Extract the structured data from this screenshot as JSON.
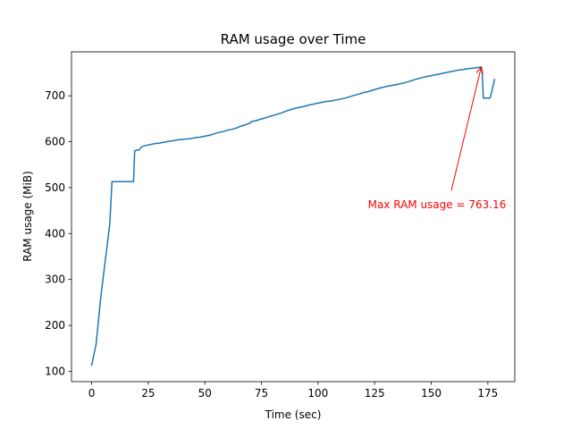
{
  "chart_data": {
    "type": "line",
    "title": "RAM usage over Time",
    "xlabel": "Time (sec)",
    "ylabel": "RAM usage (MiB)",
    "xlim": [
      -8.9,
      186.9
    ],
    "ylim": [
      77.4,
      795.8
    ],
    "xticks": [
      0,
      25,
      50,
      75,
      100,
      125,
      150,
      175
    ],
    "yticks": [
      100,
      200,
      300,
      400,
      500,
      600,
      700
    ],
    "grid": false,
    "series": [
      {
        "color": "#1f77b4",
        "x": [
          0,
          2,
          4,
          6,
          8,
          9,
          11,
          13,
          15,
          17,
          18.5,
          19,
          20,
          21,
          22,
          24,
          26,
          28,
          30,
          32,
          34,
          36,
          38,
          40,
          42,
          44,
          46,
          48,
          50,
          52,
          54,
          56,
          58,
          60,
          62,
          64,
          66,
          68,
          70,
          71,
          72,
          74,
          76,
          78,
          80,
          82,
          84,
          86,
          88,
          90,
          92,
          94,
          96,
          98,
          100,
          102,
          104,
          106,
          108,
          110,
          112,
          114,
          116,
          118,
          120,
          122,
          124,
          126,
          128,
          130,
          132,
          134,
          136,
          138,
          140,
          142,
          144,
          146,
          148,
          150,
          152,
          154,
          156,
          158,
          160,
          162,
          164,
          166,
          168,
          170,
          172,
          172.5,
          173,
          174,
          176,
          178
        ],
        "y": [
          112,
          160,
          260,
          340,
          420,
          513,
          513,
          513,
          513,
          513,
          513,
          580,
          582,
          582,
          589,
          592,
          594,
          596,
          597,
          599,
          601,
          602,
          604,
          605,
          606,
          607,
          609,
          610,
          612,
          614,
          617,
          620,
          622,
          625,
          627,
          630,
          634,
          637,
          641,
          645,
          645,
          648,
          651,
          654,
          657,
          660,
          663,
          667,
          670,
          673,
          675,
          677,
          680,
          682,
          684,
          686,
          688,
          689,
          691,
          693,
          695,
          698,
          701,
          704,
          707,
          709,
          712,
          715,
          718,
          720,
          722,
          724,
          726,
          728,
          731,
          734,
          737,
          740,
          742,
          744,
          746,
          748,
          750,
          752,
          754,
          756,
          757,
          759,
          760,
          761,
          763.16,
          750,
          695,
          695,
          695,
          737
        ]
      }
    ],
    "annotations": [
      {
        "text": "Max RAM usage = 763.16",
        "color": "#ff0000",
        "xy": [
          172,
          763.16
        ],
        "xytext": [
          122,
          463
        ]
      }
    ]
  }
}
